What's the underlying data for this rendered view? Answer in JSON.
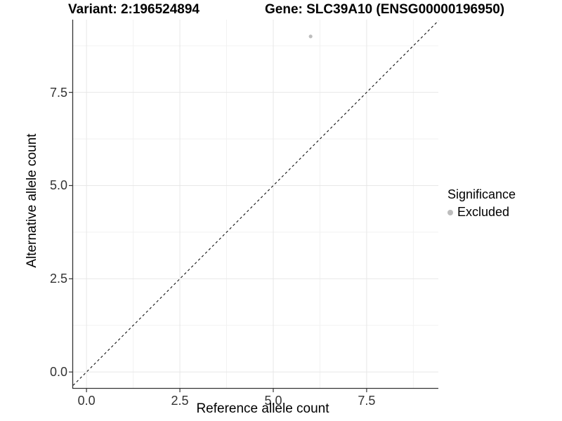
{
  "titles": {
    "variant": "Variant: 2:196524894",
    "gene": "Gene: SLC39A10 (ENSG00000196950)"
  },
  "axes": {
    "x_label": "Reference allele count",
    "y_label": "Alternative allele count"
  },
  "legend": {
    "title": "Significance",
    "position": "right",
    "items": [
      {
        "label": "Excluded",
        "marker": "circle",
        "color": "#bdbdbd"
      }
    ]
  },
  "colors": {
    "background": "#ffffff",
    "axis_line": "#333333",
    "tick_mark": "#333333",
    "tick_label": "#333333",
    "grid_major": "#e7e7e7",
    "grid_minor": "#f2f2f2",
    "identity_line": "#111111",
    "point": "#bdbdbd",
    "title_text": "#000000"
  },
  "chart_data": {
    "type": "scatter",
    "title": "Variant: 2:196524894 | Gene: SLC39A10 (ENSG00000196950)",
    "xlabel": "Reference allele count",
    "ylabel": "Alternative allele count",
    "x_ticks": [
      0.0,
      2.5,
      5.0,
      7.5
    ],
    "y_ticks": [
      0.0,
      2.5,
      5.0,
      7.5
    ],
    "x_tick_labels": [
      "0.0",
      "2.5",
      "5.0",
      "7.5"
    ],
    "y_tick_labels": [
      "0.0",
      "2.5",
      "5.0",
      "7.5"
    ],
    "x_minor_ticks": [
      1.25,
      3.75,
      6.25,
      8.75
    ],
    "y_minor_ticks": [
      1.25,
      3.75,
      6.25,
      8.75
    ],
    "xlim": [
      -0.36,
      9.42
    ],
    "ylim": [
      -0.43,
      9.45
    ],
    "grid": true,
    "legend_position": "right",
    "series": [
      {
        "name": "Excluded",
        "color": "#bdbdbd",
        "points": [
          {
            "x": 6,
            "y": 9
          }
        ]
      }
    ],
    "reference_line": {
      "type": "identity",
      "equation": "y = x",
      "linestyle": "dashed",
      "color": "#111111"
    }
  }
}
